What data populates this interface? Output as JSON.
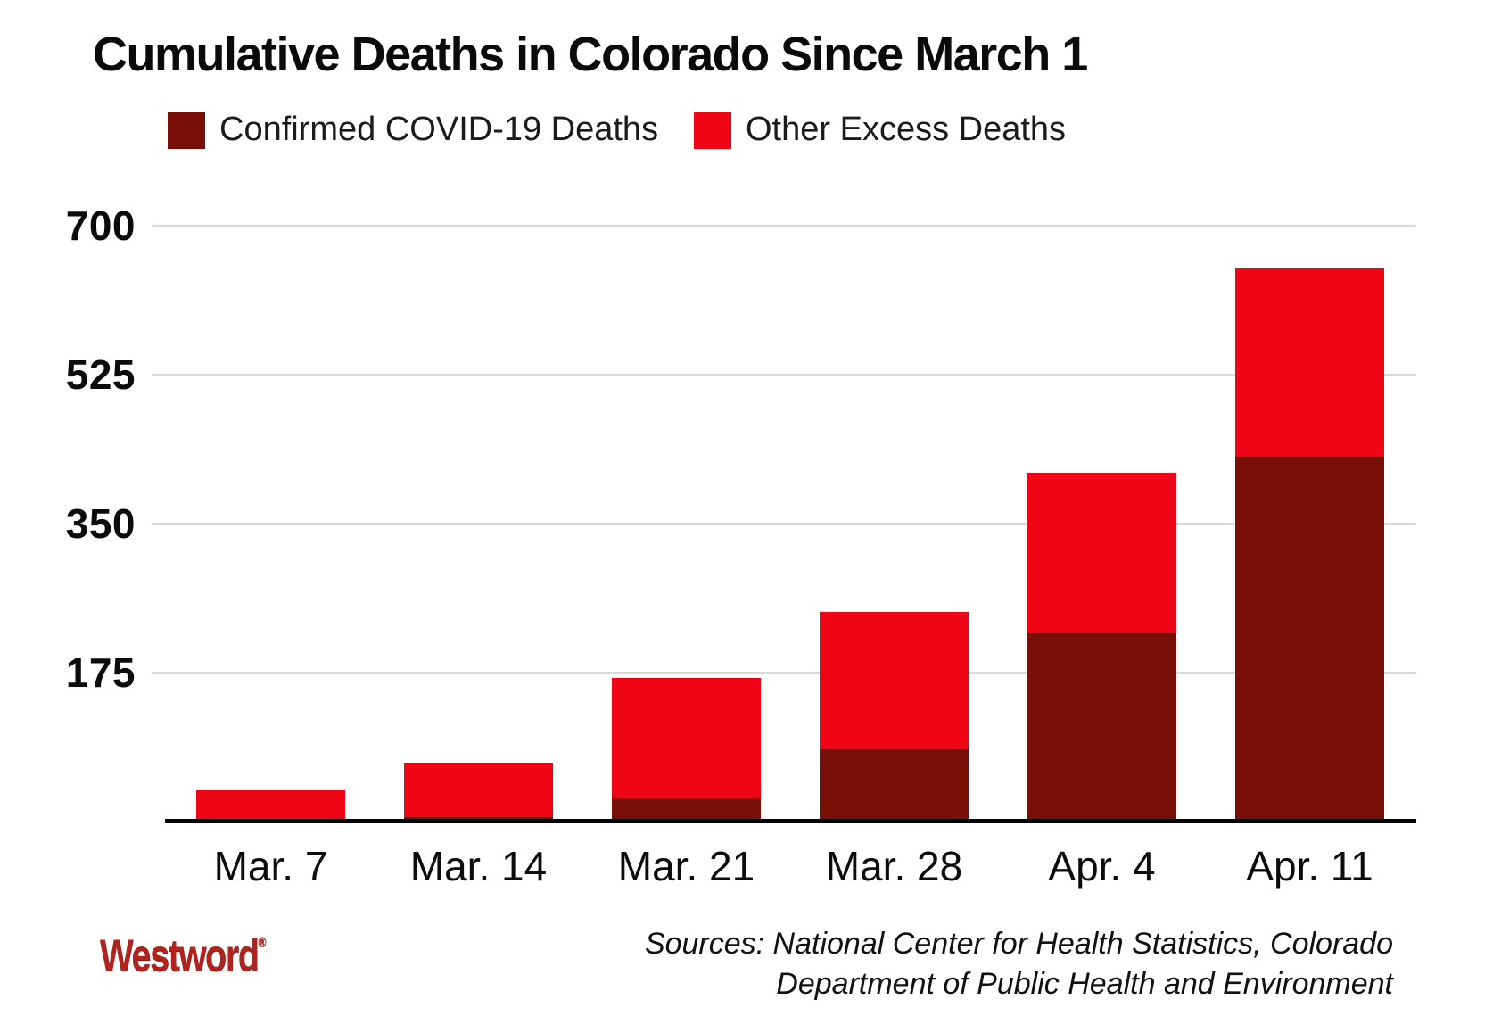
{
  "title": "Cumulative Deaths in Colorado Since March 1",
  "legend": [
    {
      "label": "Confirmed COVID-19 Deaths",
      "color": "#7a0f08"
    },
    {
      "label": "Other Excess Deaths",
      "color": "#ef0516"
    }
  ],
  "chart_data": {
    "type": "bar",
    "stacked": true,
    "title": "Cumulative Deaths in Colorado Since March 1",
    "categories": [
      "Mar. 7",
      "Mar. 14",
      "Mar. 21",
      "Mar. 28",
      "Apr. 4",
      "Apr. 11"
    ],
    "series": [
      {
        "name": "Confirmed COVID-19 Deaths",
        "color": "#7a0f08",
        "values": [
          0,
          3,
          25,
          83,
          219,
          426
        ]
      },
      {
        "name": "Other Excess Deaths",
        "color": "#ef0516",
        "values": [
          35,
          64,
          142,
          161,
          189,
          222
        ]
      }
    ],
    "totals": [
      35,
      67,
      167,
      244,
      408,
      648
    ],
    "xlabel": "",
    "ylabel": "",
    "yticks": [
      175,
      350,
      525,
      700
    ],
    "ylim": [
      0,
      735
    ],
    "grid": true,
    "gridline_color": "#d9d9d9",
    "axis_color": "#000000",
    "legend_position": "top"
  },
  "footer": {
    "sources_line1": "Sources: National Center for Health Statistics, Colorado",
    "sources_line2": "Department of Public Health and Environment",
    "logo_text": "Westword",
    "logo_mark": "®",
    "logo_color": "#b0231e"
  }
}
